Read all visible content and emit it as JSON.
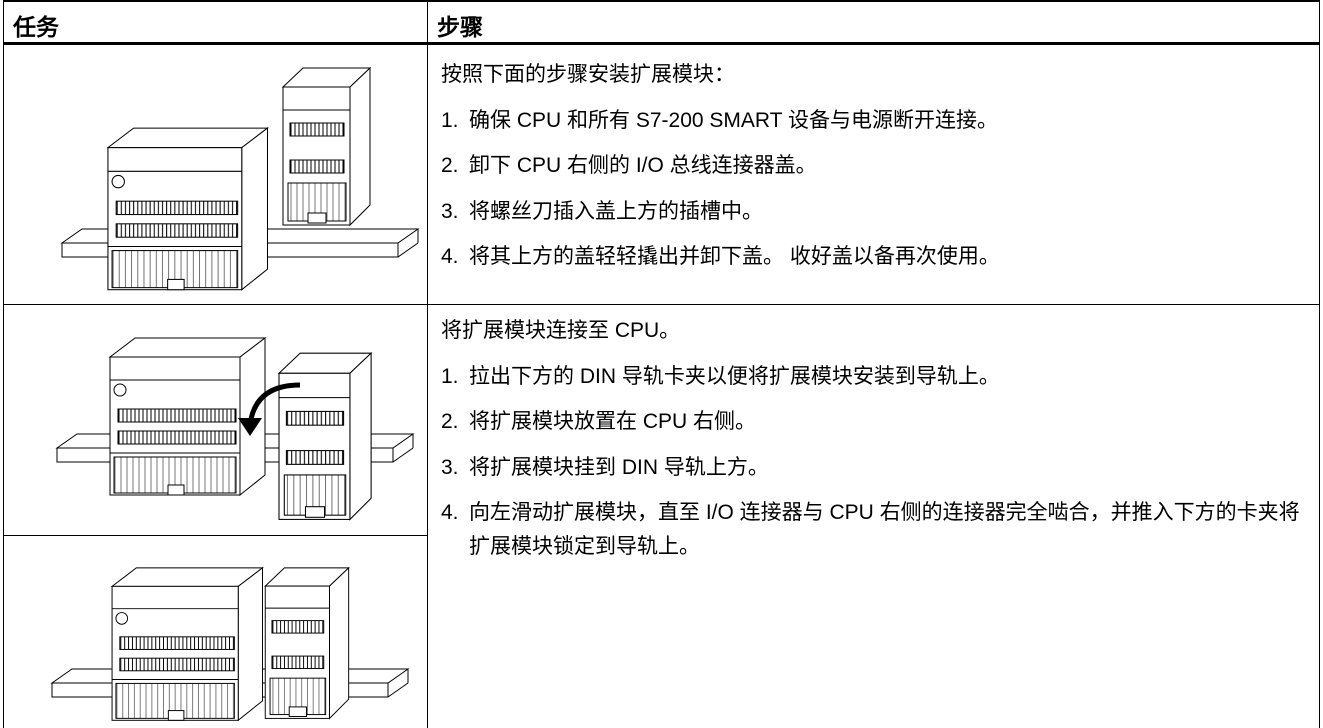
{
  "header": {
    "task": "任务",
    "steps": "步骤"
  },
  "rows": [
    {
      "intro": "按照下面的步骤安装扩展模块：",
      "steps": [
        {
          "num": "1.",
          "text": "确保 CPU 和所有 S7-200 SMART 设备与电源断开连接。"
        },
        {
          "num": "2.",
          "text": "卸下 CPU 右侧的 I/O 总线连接器盖。"
        },
        {
          "num": "3.",
          "text": "将螺丝刀插入盖上方的插槽中。"
        },
        {
          "num": "4.",
          "text": "将其上方的盖轻轻撬出并卸下盖。 收好盖以备再次使用。"
        }
      ]
    },
    {
      "intro": "将扩展模块连接至 CPU。",
      "steps": [
        {
          "num": "1.",
          "text": "拉出下方的 DIN 导轨卡夹以便将扩展模块安装到导轨上。"
        },
        {
          "num": "2.",
          "text": "将扩展模块放置在 CPU 右侧。"
        },
        {
          "num": "3.",
          "text": "将扩展模块挂到 DIN 导轨上方。"
        },
        {
          "num": "4.",
          "text": "向左滑动扩展模块，直至 I/O 连接器与 CPU 右侧的连接器完全啮合，并推入下方的卡夹将扩展模块锁定到导轨上。"
        }
      ]
    }
  ]
}
